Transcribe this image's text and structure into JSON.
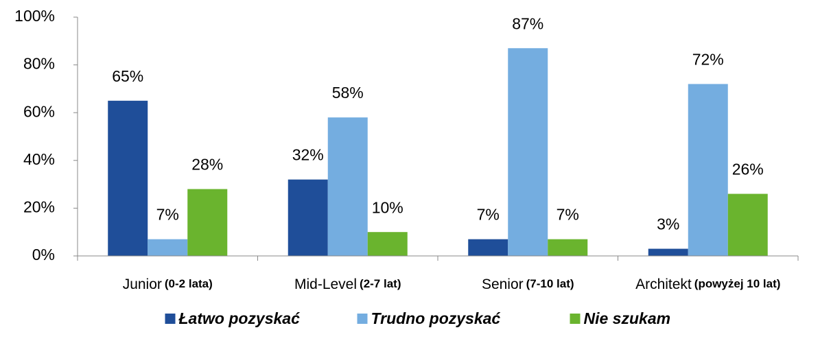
{
  "chart_data": {
    "type": "bar",
    "categories": [
      "Junior",
      "Mid-Level",
      "Senior",
      "Architekt"
    ],
    "category_notes": [
      "(0-2 lata)",
      "(2-7 lat)",
      "(7-10 lat)",
      "(powyżej 10 lat)"
    ],
    "series": [
      {
        "name": "Łatwo pozyskać",
        "color": "#1f4e99",
        "values": [
          65,
          32,
          7,
          3
        ],
        "value_labels": [
          "65%",
          "32%",
          "7%",
          "3%"
        ]
      },
      {
        "name": "Trudno pozyskać",
        "color": "#74ade0",
        "values": [
          7,
          58,
          87,
          72
        ],
        "value_labels": [
          "7%",
          "58%",
          "87%",
          "72%"
        ]
      },
      {
        "name": "Nie szukam",
        "color": "#6ab42e",
        "values": [
          28,
          10,
          7,
          26
        ],
        "value_labels": [
          "28%",
          "10%",
          "7%",
          "26%"
        ]
      }
    ],
    "ylim": [
      0,
      100
    ],
    "yticks": [
      {
        "value": 0,
        "label": "0%"
      },
      {
        "value": 20,
        "label": "20%"
      },
      {
        "value": 40,
        "label": "40%"
      },
      {
        "value": 60,
        "label": "60%"
      },
      {
        "value": 80,
        "label": "80%"
      },
      {
        "value": 100,
        "label": "100%"
      }
    ],
    "legend": "bottom"
  }
}
